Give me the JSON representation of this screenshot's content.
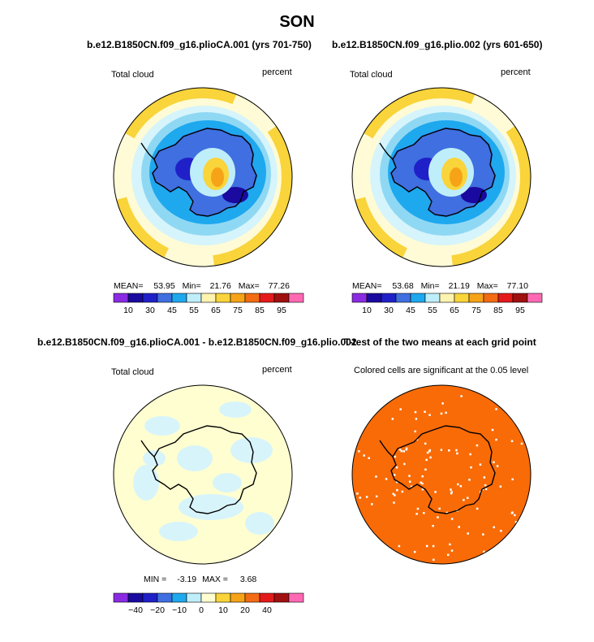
{
  "main_title": "SON",
  "panels": [
    {
      "title": "b.e12.B1850CN.f09_g16.plioCA.001 (yrs 701-750)",
      "left_label": "Total cloud",
      "right_label": "percent",
      "stats": [
        "MEAN=",
        "53.95",
        "Min=",
        "21.76",
        "Max=",
        "77.26"
      ],
      "colorbar_labels": [
        "10",
        "30",
        "45",
        "55",
        "65",
        "75",
        "85",
        "95"
      ]
    },
    {
      "title": "b.e12.B1850CN.f09_g16.plio.002 (yrs 601-650)",
      "left_label": "Total cloud",
      "right_label": "percent",
      "stats": [
        "MEAN=",
        "53.68",
        "Min=",
        "21.19",
        "Max=",
        "77.10"
      ],
      "colorbar_labels": [
        "10",
        "30",
        "45",
        "55",
        "65",
        "75",
        "85",
        "95"
      ]
    },
    {
      "title": "b.e12.B1850CN.f09_g16.plioCA.001 - b.e12.B1850CN.f09_g16.plio.002",
      "left_label": "Total cloud",
      "right_label": "percent",
      "stats": [
        "MIN =",
        "-3.19",
        "MAX =",
        "3.68"
      ],
      "colorbar_labels": [
        "−40",
        "−20",
        "−10",
        "0",
        "10",
        "20",
        "40"
      ]
    },
    {
      "title": "T-test of the two means at each grid point",
      "subtitle": "Colored cells are significant at the 0.05 level"
    }
  ],
  "colors": {
    "abs_scale": [
      "#8a2be2",
      "#1a0aa0",
      "#2020c8",
      "#3f6fe0",
      "#1ea8ee",
      "#bfeefb",
      "#fff3b0",
      "#f9d43a",
      "#f6a318",
      "#f36b12",
      "#e41a1a",
      "#a01010",
      "#ff69b4"
    ],
    "diff_scale": [
      "#8a2be2",
      "#1a0aa0",
      "#2020c8",
      "#3f6fe0",
      "#1ea8ee",
      "#bfeefb",
      "#fffed0",
      "#f9d43a",
      "#f6a318",
      "#f36b12",
      "#e41a1a",
      "#a01010",
      "#ff69b4"
    ],
    "ttest": "#f96b06"
  },
  "chart_data": [
    {
      "type": "heatmap",
      "title": "b.e12.B1850CN.f09_g16.plioCA.001 (yrs 701-750)",
      "variable": "Total cloud",
      "units": "percent",
      "season": "SON",
      "mean": 53.95,
      "min": 21.76,
      "max": 77.26,
      "contour_levels": [
        10,
        20,
        30,
        40,
        45,
        50,
        55,
        60,
        65,
        70,
        75,
        80,
        85,
        90,
        95
      ],
      "colorbar_tick_labels": [
        10,
        30,
        45,
        55,
        65,
        75,
        85,
        95
      ]
    },
    {
      "type": "heatmap",
      "title": "b.e12.B1850CN.f09_g16.plio.002 (yrs 601-650)",
      "variable": "Total cloud",
      "units": "percent",
      "season": "SON",
      "mean": 53.68,
      "min": 21.19,
      "max": 77.1,
      "contour_levels": [
        10,
        20,
        30,
        40,
        45,
        50,
        55,
        60,
        65,
        70,
        75,
        80,
        85,
        90,
        95
      ],
      "colorbar_tick_labels": [
        10,
        30,
        45,
        55,
        65,
        75,
        85,
        95
      ]
    },
    {
      "type": "heatmap",
      "title": "b.e12.B1850CN.f09_g16.plioCA.001 - b.e12.B1850CN.f09_g16.plio.002",
      "variable": "Total cloud",
      "units": "percent",
      "season": "SON",
      "min": -3.19,
      "max": 3.68,
      "colorbar_tick_labels": [
        -40,
        -20,
        -10,
        0,
        10,
        20,
        40
      ]
    },
    {
      "type": "heatmap",
      "title": "T-test of the two means at each grid point",
      "note": "Colored cells are significant at the 0.05 level"
    }
  ]
}
